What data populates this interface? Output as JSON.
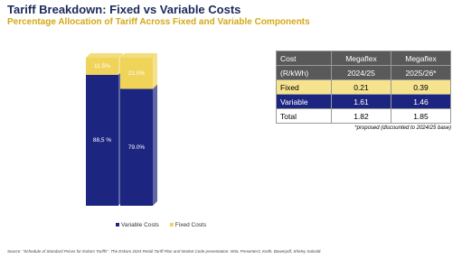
{
  "header": {
    "title": "Tariff Breakdown: Fixed vs Variable Costs",
    "subtitle": "Percentage Allocation of Tariff Across Fixed and Variable Components"
  },
  "chart_data": {
    "type": "stacked-bar",
    "categories": [
      null,
      null
    ],
    "series": [
      {
        "name": "Variable Costs",
        "color": "#1c2680",
        "values": [
          88.5,
          79.0
        ],
        "value_labels": [
          "88,5 %",
          "79.0%"
        ]
      },
      {
        "name": "Fixed Costs",
        "color": "#f0d45a",
        "values": [
          11.5,
          21.0
        ],
        "value_labels": [
          "11.5%",
          "21.0%"
        ]
      }
    ]
  },
  "table": {
    "header": [
      [
        "Cost",
        "Megaflex",
        "Megaflex"
      ],
      [
        "(R/kWh)",
        "2024/25",
        "2025/26*"
      ]
    ],
    "rows": [
      [
        "Fixed",
        0.21,
        0.39
      ],
      [
        "Variable",
        1.61,
        1.46
      ],
      [
        "Total",
        1.82,
        1.85
      ]
    ],
    "note": "*proposed (discounted to 2024/25 base)"
  },
  "source": "Source: \"Schedule of Standard Prices for Eskom Tariffs\". The Eskom 2024 Retail Tariff Plan and Market Code presentation: WSL Presenter3, Keith, Bowerpdf, Shirley Salvold."
}
